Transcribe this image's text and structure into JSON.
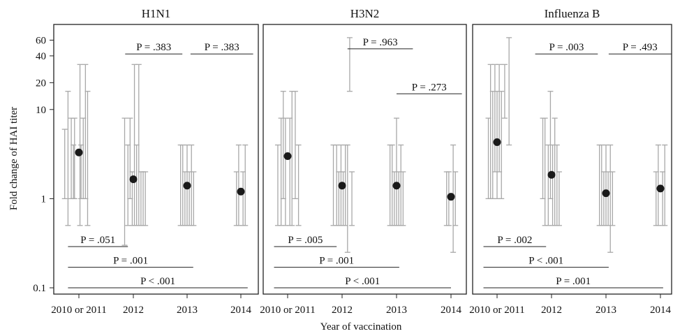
{
  "chart_data": {
    "type": "scatter",
    "ylabel": "Fold change of HAI titer",
    "xlabel": "Year of vaccination",
    "y_scale": "log",
    "ylim": [
      0.085,
      90
    ],
    "y_ticks": [
      {
        "value": 0.1,
        "label": "0.1"
      },
      {
        "value": 1,
        "label": "1"
      },
      {
        "value": 10,
        "label": "10"
      },
      {
        "value": 20,
        "label": "20"
      },
      {
        "value": 40,
        "label": "40"
      },
      {
        "value": 60,
        "label": "60"
      }
    ],
    "x_categories": [
      "2010 or 2011",
      "2012",
      "2013",
      "2014"
    ],
    "colors": {
      "point": "#1a1a1a",
      "errorbar": "#a8a8a8",
      "line": "#222222"
    },
    "panels": [
      {
        "title": "H1N1",
        "means": [
          3.3,
          1.65,
          1.4,
          1.2
        ],
        "errorbars": [
          [
            {
              "x": -0.26,
              "y": 1.0,
              "lo": 1.0,
              "hi": 6.0
            },
            {
              "x": -0.2,
              "y": 2.0,
              "lo": 0.5,
              "hi": 16.0
            },
            {
              "x": -0.14,
              "y": 3.0,
              "lo": 1.0,
              "hi": 8.0
            },
            {
              "x": -0.08,
              "y": 2.0,
              "lo": 1.0,
              "hi": 8.0
            },
            {
              "x": 0.02,
              "y": 4.0,
              "lo": 0.5,
              "hi": 32.0
            },
            {
              "x": 0.08,
              "y": 2.0,
              "lo": 1.0,
              "hi": 8.0
            },
            {
              "x": 0.12,
              "y": 4.0,
              "lo": 1.0,
              "hi": 32.0
            },
            {
              "x": 0.16,
              "y": 1.5,
              "lo": 0.5,
              "hi": 16.0
            },
            {
              "x": -0.1,
              "y": 1.5,
              "lo": 1.0,
              "hi": 4.0
            },
            {
              "x": 0.04,
              "y": 1.5,
              "lo": 1.0,
              "hi": 4.0
            }
          ],
          [
            {
              "x": -0.16,
              "y": 1.0,
              "lo": 0.3,
              "hi": 8.0
            },
            {
              "x": -0.1,
              "y": 1.5,
              "lo": 0.5,
              "hi": 4.0
            },
            {
              "x": -0.06,
              "y": 2.0,
              "lo": 1.0,
              "hi": 8.0
            },
            {
              "x": -0.02,
              "y": 1.2,
              "lo": 0.5,
              "hi": 2.0
            },
            {
              "x": 0.02,
              "y": 4.0,
              "lo": 0.5,
              "hi": 32.0
            },
            {
              "x": 0.06,
              "y": 1.2,
              "lo": 0.5,
              "hi": 4.0
            },
            {
              "x": 0.1,
              "y": 4.0,
              "lo": 0.5,
              "hi": 32.0
            },
            {
              "x": 0.14,
              "y": 1.2,
              "lo": 0.5,
              "hi": 2.0
            },
            {
              "x": 0.18,
              "y": 1.0,
              "lo": 0.5,
              "hi": 2.0
            },
            {
              "x": 0.22,
              "y": 1.0,
              "lo": 0.5,
              "hi": 2.0
            }
          ],
          [
            {
              "x": -0.12,
              "y": 1.0,
              "lo": 0.5,
              "hi": 4.0
            },
            {
              "x": -0.08,
              "y": 1.4,
              "lo": 0.5,
              "hi": 4.0
            },
            {
              "x": -0.04,
              "y": 1.0,
              "lo": 0.5,
              "hi": 2.0
            },
            {
              "x": 0.0,
              "y": 1.4,
              "lo": 0.5,
              "hi": 4.0
            },
            {
              "x": 0.04,
              "y": 1.0,
              "lo": 0.5,
              "hi": 2.0
            },
            {
              "x": 0.08,
              "y": 1.4,
              "lo": 0.5,
              "hi": 4.0
            },
            {
              "x": 0.12,
              "y": 1.0,
              "lo": 0.5,
              "hi": 2.0
            }
          ],
          [
            {
              "x": -0.08,
              "y": 1.0,
              "lo": 0.5,
              "hi": 2.0
            },
            {
              "x": -0.04,
              "y": 1.4,
              "lo": 0.5,
              "hi": 4.0
            },
            {
              "x": 0.04,
              "y": 1.0,
              "lo": 0.5,
              "hi": 2.0
            },
            {
              "x": 0.08,
              "y": 1.4,
              "lo": 0.5,
              "hi": 4.0
            }
          ]
        ],
        "pvalues": [
          {
            "label": "P = .383",
            "from": 0.85,
            "to": 1.9,
            "y": 42
          },
          {
            "label": "P = .383",
            "from": 2.05,
            "to": 3.2,
            "y": 42
          },
          {
            "label": "P = .051",
            "from": -0.2,
            "to": 0.9,
            "y": 0.29
          },
          {
            "label": "P = .001",
            "from": -0.2,
            "to": 2.1,
            "y": 0.17
          },
          {
            "label": "P < .001",
            "from": -0.2,
            "to": 3.1,
            "y": 0.1
          }
        ]
      },
      {
        "title": "H3N2",
        "means": [
          3.0,
          1.4,
          1.4,
          1.05
        ],
        "errorbars": [
          [
            {
              "x": -0.18,
              "y": 1.0,
              "lo": 0.5,
              "hi": 4.0
            },
            {
              "x": -0.12,
              "y": 2.0,
              "lo": 0.5,
              "hi": 8.0
            },
            {
              "x": -0.08,
              "y": 4.0,
              "lo": 1.0,
              "hi": 16.0
            },
            {
              "x": -0.04,
              "y": 2.0,
              "lo": 0.5,
              "hi": 8.0
            },
            {
              "x": 0.04,
              "y": 2.0,
              "lo": 0.5,
              "hi": 8.0
            },
            {
              "x": 0.08,
              "y": 4.0,
              "lo": 0.5,
              "hi": 16.0
            },
            {
              "x": 0.14,
              "y": 4.0,
              "lo": 1.0,
              "hi": 16.0
            },
            {
              "x": 0.2,
              "y": 1.0,
              "lo": 0.5,
              "hi": 4.0
            }
          ],
          [
            {
              "x": -0.16,
              "y": 1.0,
              "lo": 0.5,
              "hi": 4.0
            },
            {
              "x": -0.1,
              "y": 1.4,
              "lo": 0.5,
              "hi": 4.0
            },
            {
              "x": -0.06,
              "y": 1.0,
              "lo": 0.5,
              "hi": 2.0
            },
            {
              "x": -0.02,
              "y": 1.4,
              "lo": 0.5,
              "hi": 4.0
            },
            {
              "x": 0.02,
              "y": 1.0,
              "lo": 0.5,
              "hi": 2.0
            },
            {
              "x": 0.06,
              "y": 1.4,
              "lo": 0.5,
              "hi": 4.0
            },
            {
              "x": 0.1,
              "y": 1.0,
              "lo": 0.25,
              "hi": 4.0
            },
            {
              "x": 0.14,
              "y": 32.0,
              "lo": 16.0,
              "hi": 64.0
            },
            {
              "x": 0.18,
              "y": 1.0,
              "lo": 0.5,
              "hi": 2.0
            }
          ],
          [
            {
              "x": -0.12,
              "y": 1.0,
              "lo": 0.5,
              "hi": 4.0
            },
            {
              "x": -0.08,
              "y": 1.4,
              "lo": 0.5,
              "hi": 4.0
            },
            {
              "x": -0.04,
              "y": 1.0,
              "lo": 0.5,
              "hi": 2.0
            },
            {
              "x": 0.0,
              "y": 1.4,
              "lo": 0.5,
              "hi": 8.0
            },
            {
              "x": 0.04,
              "y": 1.0,
              "lo": 0.5,
              "hi": 2.0
            },
            {
              "x": 0.08,
              "y": 1.4,
              "lo": 0.5,
              "hi": 4.0
            },
            {
              "x": 0.12,
              "y": 1.0,
              "lo": 0.5,
              "hi": 2.0
            }
          ],
          [
            {
              "x": -0.08,
              "y": 1.0,
              "lo": 0.5,
              "hi": 2.0
            },
            {
              "x": -0.04,
              "y": 1.0,
              "lo": 0.5,
              "hi": 2.0
            },
            {
              "x": 0.04,
              "y": 1.0,
              "lo": 0.25,
              "hi": 4.0
            },
            {
              "x": 0.08,
              "y": 1.0,
              "lo": 0.5,
              "hi": 2.0
            }
          ]
        ],
        "pvalues": [
          {
            "label": "P = .963",
            "from": 1.1,
            "to": 2.3,
            "y": 48
          },
          {
            "label": "P = .273",
            "from": 2.0,
            "to": 3.2,
            "y": 15
          },
          {
            "label": "P = .005",
            "from": -0.25,
            "to": 0.9,
            "y": 0.29
          },
          {
            "label": "P = .001",
            "from": -0.25,
            "to": 2.05,
            "y": 0.17
          },
          {
            "label": "P < .001",
            "from": -0.25,
            "to": 3.0,
            "y": 0.1
          }
        ]
      },
      {
        "title": "Influenza B",
        "means": [
          4.3,
          1.85,
          1.15,
          1.3
        ],
        "errorbars": [
          [
            {
              "x": -0.16,
              "y": 2.0,
              "lo": 1.0,
              "hi": 8.0
            },
            {
              "x": -0.12,
              "y": 8.0,
              "lo": 1.0,
              "hi": 32.0
            },
            {
              "x": -0.08,
              "y": 4.0,
              "lo": 1.0,
              "hi": 16.0
            },
            {
              "x": -0.04,
              "y": 8.0,
              "lo": 2.0,
              "hi": 32.0
            },
            {
              "x": 0.0,
              "y": 4.0,
              "lo": 1.0,
              "hi": 16.0
            },
            {
              "x": 0.04,
              "y": 8.0,
              "lo": 2.0,
              "hi": 32.0
            },
            {
              "x": 0.08,
              "y": 4.0,
              "lo": 1.0,
              "hi": 16.0
            },
            {
              "x": 0.14,
              "y": 16.0,
              "lo": 8.0,
              "hi": 32.0
            },
            {
              "x": 0.22,
              "y": 16.0,
              "lo": 4.0,
              "hi": 64.0
            }
          ],
          [
            {
              "x": -0.16,
              "y": 2.0,
              "lo": 1.0,
              "hi": 8.0
            },
            {
              "x": -0.12,
              "y": 2.0,
              "lo": 0.5,
              "hi": 8.0
            },
            {
              "x": -0.06,
              "y": 1.4,
              "lo": 0.5,
              "hi": 4.0
            },
            {
              "x": -0.02,
              "y": 2.0,
              "lo": 1.0,
              "hi": 16.0
            },
            {
              "x": 0.02,
              "y": 1.4,
              "lo": 0.5,
              "hi": 4.0
            },
            {
              "x": 0.06,
              "y": 2.0,
              "lo": 0.5,
              "hi": 8.0
            },
            {
              "x": 0.1,
              "y": 1.4,
              "lo": 0.5,
              "hi": 4.0
            },
            {
              "x": 0.14,
              "y": 1.0,
              "lo": 0.5,
              "hi": 2.0
            }
          ],
          [
            {
              "x": -0.12,
              "y": 1.0,
              "lo": 0.5,
              "hi": 4.0
            },
            {
              "x": -0.08,
              "y": 1.4,
              "lo": 0.5,
              "hi": 4.0
            },
            {
              "x": -0.04,
              "y": 1.0,
              "lo": 0.5,
              "hi": 2.0
            },
            {
              "x": 0.0,
              "y": 1.4,
              "lo": 0.5,
              "hi": 4.0
            },
            {
              "x": 0.04,
              "y": 1.0,
              "lo": 0.5,
              "hi": 2.0
            },
            {
              "x": 0.08,
              "y": 1.4,
              "lo": 0.25,
              "hi": 4.0
            },
            {
              "x": 0.12,
              "y": 1.0,
              "lo": 0.5,
              "hi": 2.0
            }
          ],
          [
            {
              "x": -0.08,
              "y": 1.0,
              "lo": 0.5,
              "hi": 2.0
            },
            {
              "x": -0.04,
              "y": 1.4,
              "lo": 0.5,
              "hi": 4.0
            },
            {
              "x": 0.04,
              "y": 1.0,
              "lo": 0.5,
              "hi": 2.0
            },
            {
              "x": 0.08,
              "y": 1.4,
              "lo": 0.5,
              "hi": 4.0
            }
          ]
        ],
        "pvalues": [
          {
            "label": "P = .003",
            "from": 0.7,
            "to": 1.85,
            "y": 42
          },
          {
            "label": "P = .493",
            "from": 2.05,
            "to": 3.2,
            "y": 42
          },
          {
            "label": "P = .002",
            "from": -0.25,
            "to": 0.9,
            "y": 0.29
          },
          {
            "label": "P < .001",
            "from": -0.25,
            "to": 2.05,
            "y": 0.17
          },
          {
            "label": "P = .001",
            "from": -0.25,
            "to": 3.05,
            "y": 0.1
          }
        ]
      }
    ]
  }
}
